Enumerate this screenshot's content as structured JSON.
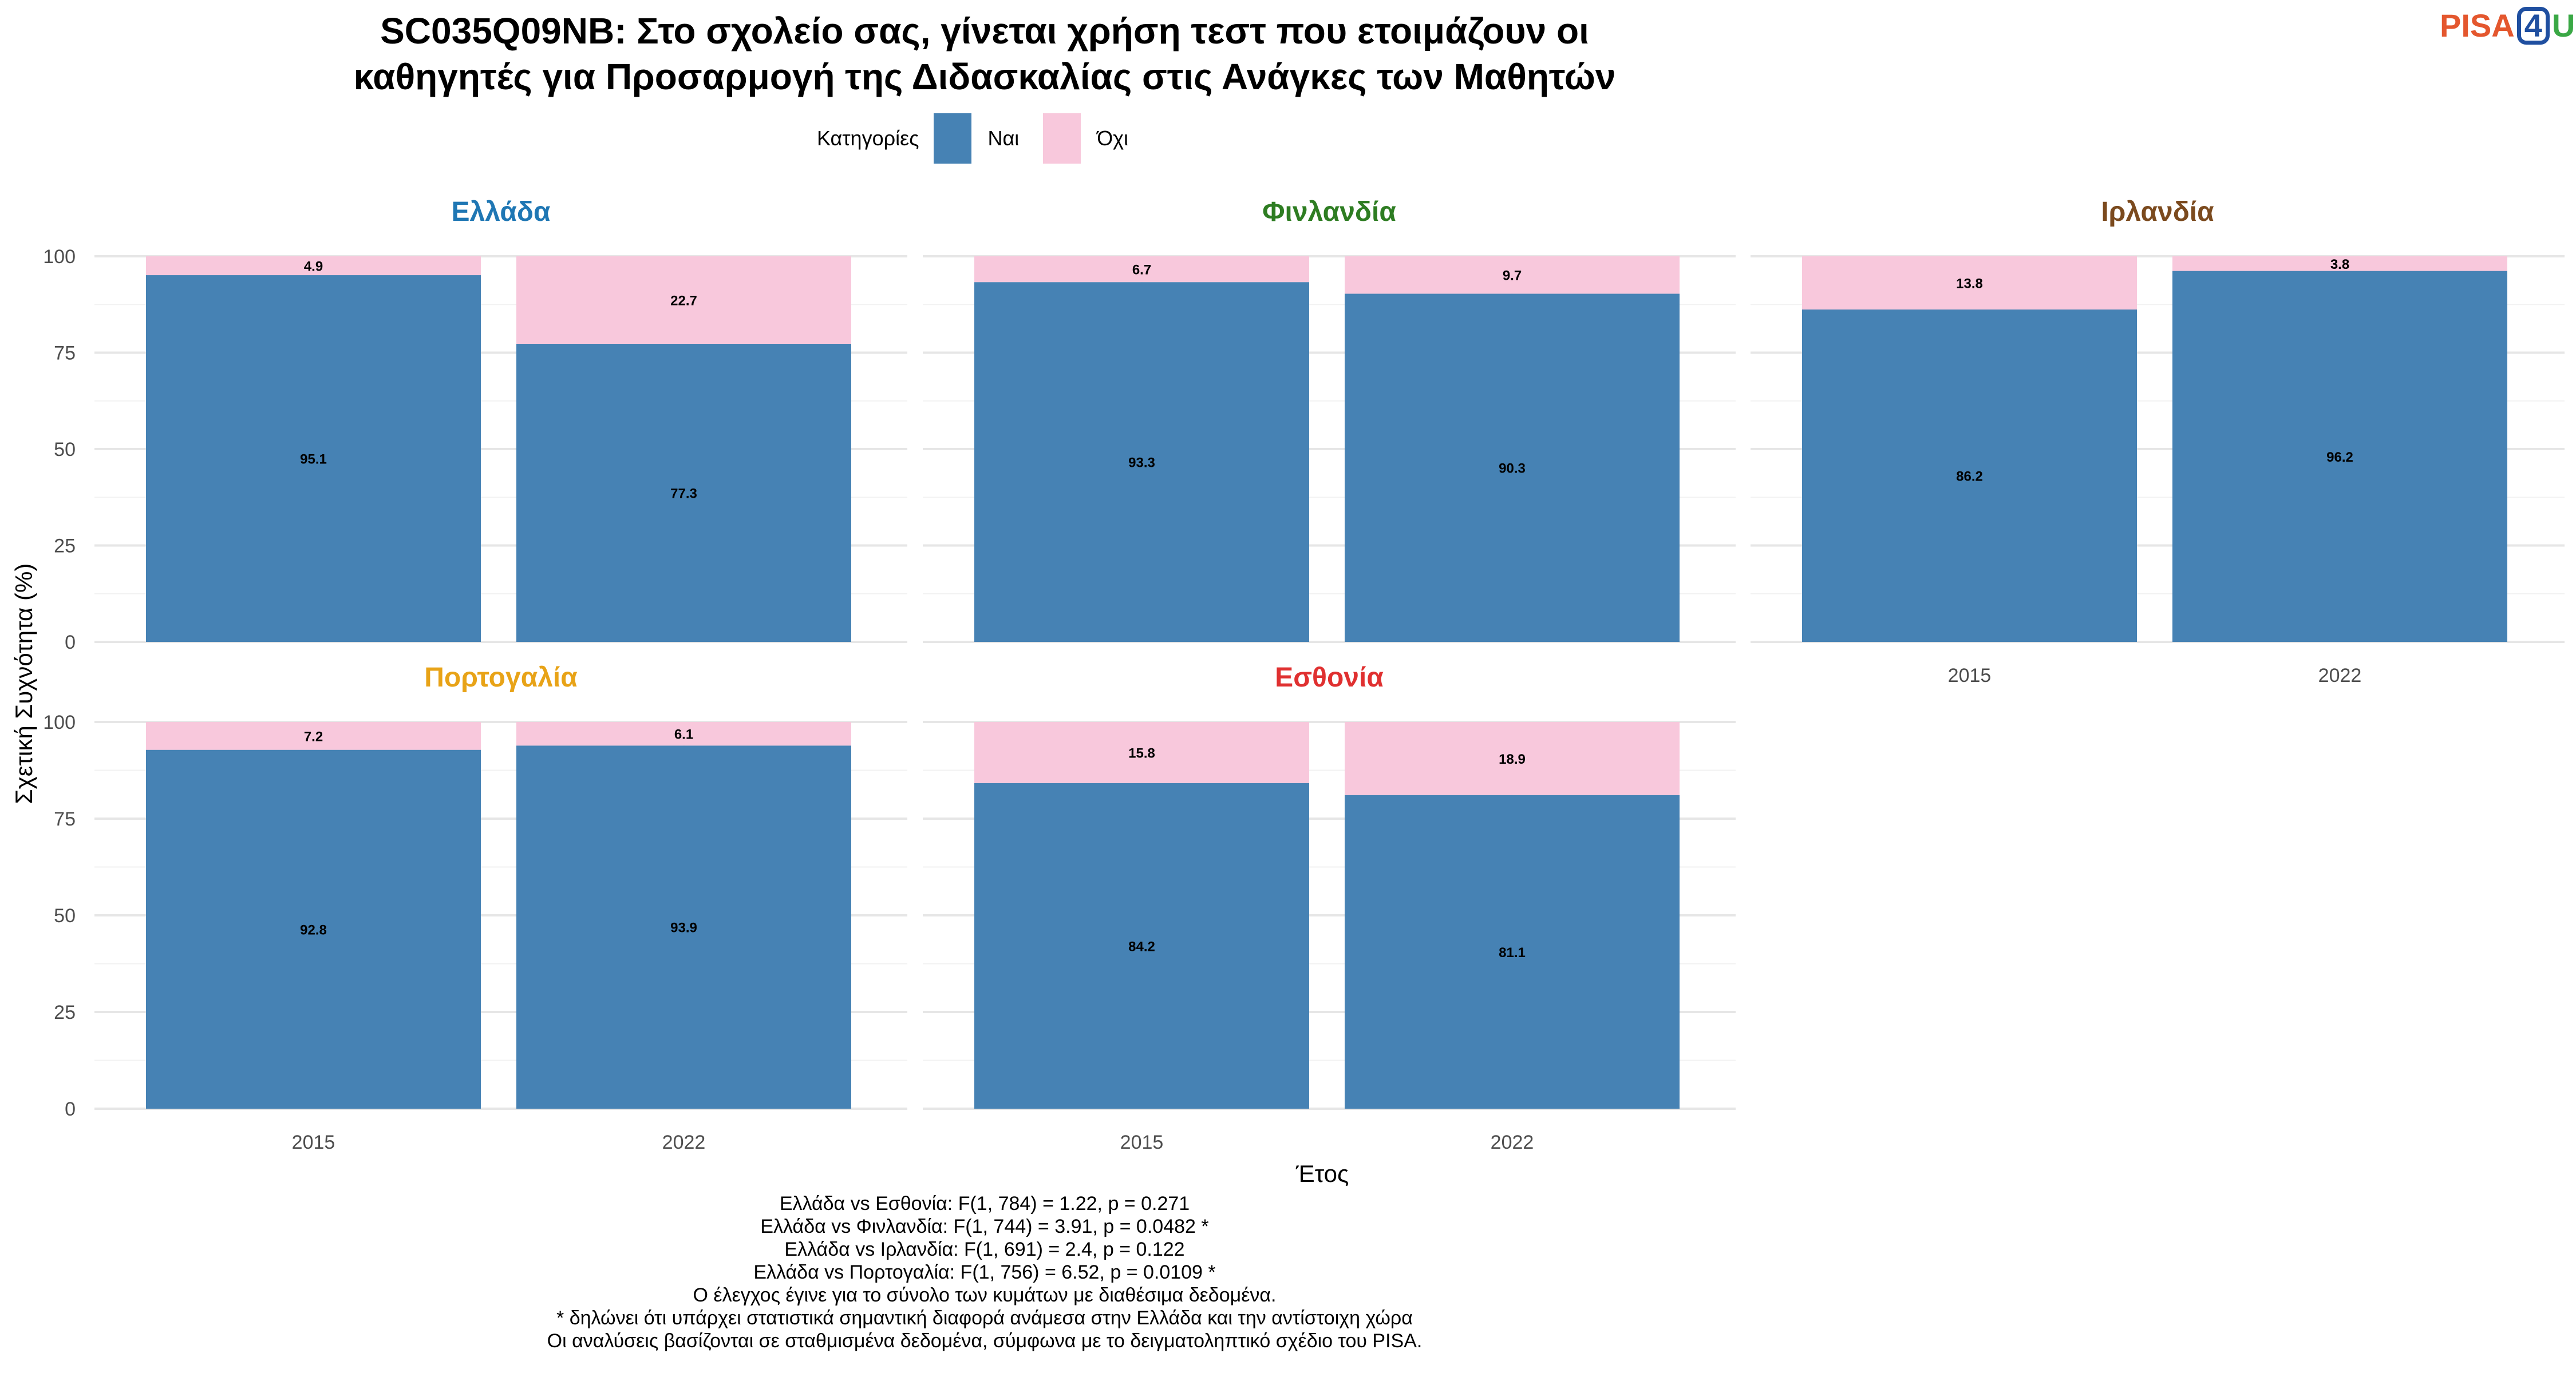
{
  "title_line1": "SC035Q09NB: Στο σχολείο σας, γίνεται χρήση τεστ που ετοιμάζουν οι",
  "title_line2": "καθηγητές για Προσαρμογή της Διδασκαλίας στις Ανάγκες των Μαθητών",
  "logo": {
    "pisa": "PISA",
    "four": "4",
    "u": "U"
  },
  "legend": {
    "title": "Κατηγορίες",
    "items": [
      {
        "label": "Ναι",
        "color": "#4682b4"
      },
      {
        "label": "Όχι",
        "color": "#f8c8dc"
      }
    ]
  },
  "chart_data": {
    "type": "bar",
    "stacked": true,
    "xlabel": "Έτος",
    "ylabel": "Σχετική Συχνότητα (%)",
    "ylim": [
      0,
      100
    ],
    "yticks": [
      0,
      25,
      50,
      75,
      100
    ],
    "categories": [
      "2015",
      "2022"
    ],
    "grid": true,
    "legend_position": "top",
    "panels": [
      {
        "name": "Ελλάδα",
        "title_color": "#1f77b4",
        "series": [
          {
            "name": "Ναι",
            "values": [
              95.1,
              77.3
            ]
          },
          {
            "name": "Όχι",
            "values": [
              4.9,
              22.7
            ]
          }
        ]
      },
      {
        "name": "Φινλανδία",
        "title_color": "#2e7d22",
        "series": [
          {
            "name": "Ναι",
            "values": [
              93.3,
              90.3
            ]
          },
          {
            "name": "Όχι",
            "values": [
              6.7,
              9.7
            ]
          }
        ]
      },
      {
        "name": "Ιρλανδία",
        "title_color": "#7b4a1e",
        "series": [
          {
            "name": "Ναι",
            "values": [
              86.2,
              96.2
            ]
          },
          {
            "name": "Όχι",
            "values": [
              13.8,
              3.8
            ]
          }
        ]
      },
      {
        "name": "Πορτογαλία",
        "title_color": "#e8a317",
        "series": [
          {
            "name": "Ναι",
            "values": [
              92.8,
              93.9
            ]
          },
          {
            "name": "Όχι",
            "values": [
              7.2,
              6.1
            ]
          }
        ]
      },
      {
        "name": "Εσθονία",
        "title_color": "#e03030",
        "series": [
          {
            "name": "Ναι",
            "values": [
              84.2,
              81.1
            ]
          },
          {
            "name": "Όχι",
            "values": [
              15.8,
              18.9
            ]
          }
        ]
      }
    ]
  },
  "notes": [
    "Ελλάδα vs Εσθονία: F(1, 784) = 1.22, p = 0.271",
    "Ελλάδα vs Φινλανδία: F(1, 744) = 3.91, p = 0.0482 *",
    "Ελλάδα vs Ιρλανδία: F(1, 691) = 2.4, p = 0.122",
    "Ελλάδα vs Πορτογαλία: F(1, 756) = 6.52, p = 0.0109 *",
    "Ο έλεγχος έγινε για το σύνολο των κυμάτων με διαθέσιμα δεδομένα.",
    "* δηλώνει ότι υπάρχει στατιστικά σημαντική διαφορά ανάμεσα στην Ελλάδα και την αντίστοιχη χώρα",
    "Οι αναλύσεις βασίζονται σε σταθμισμένα δεδομένα, σύμφωνα με το δειγματοληπτικό σχέδιο του PISA."
  ]
}
